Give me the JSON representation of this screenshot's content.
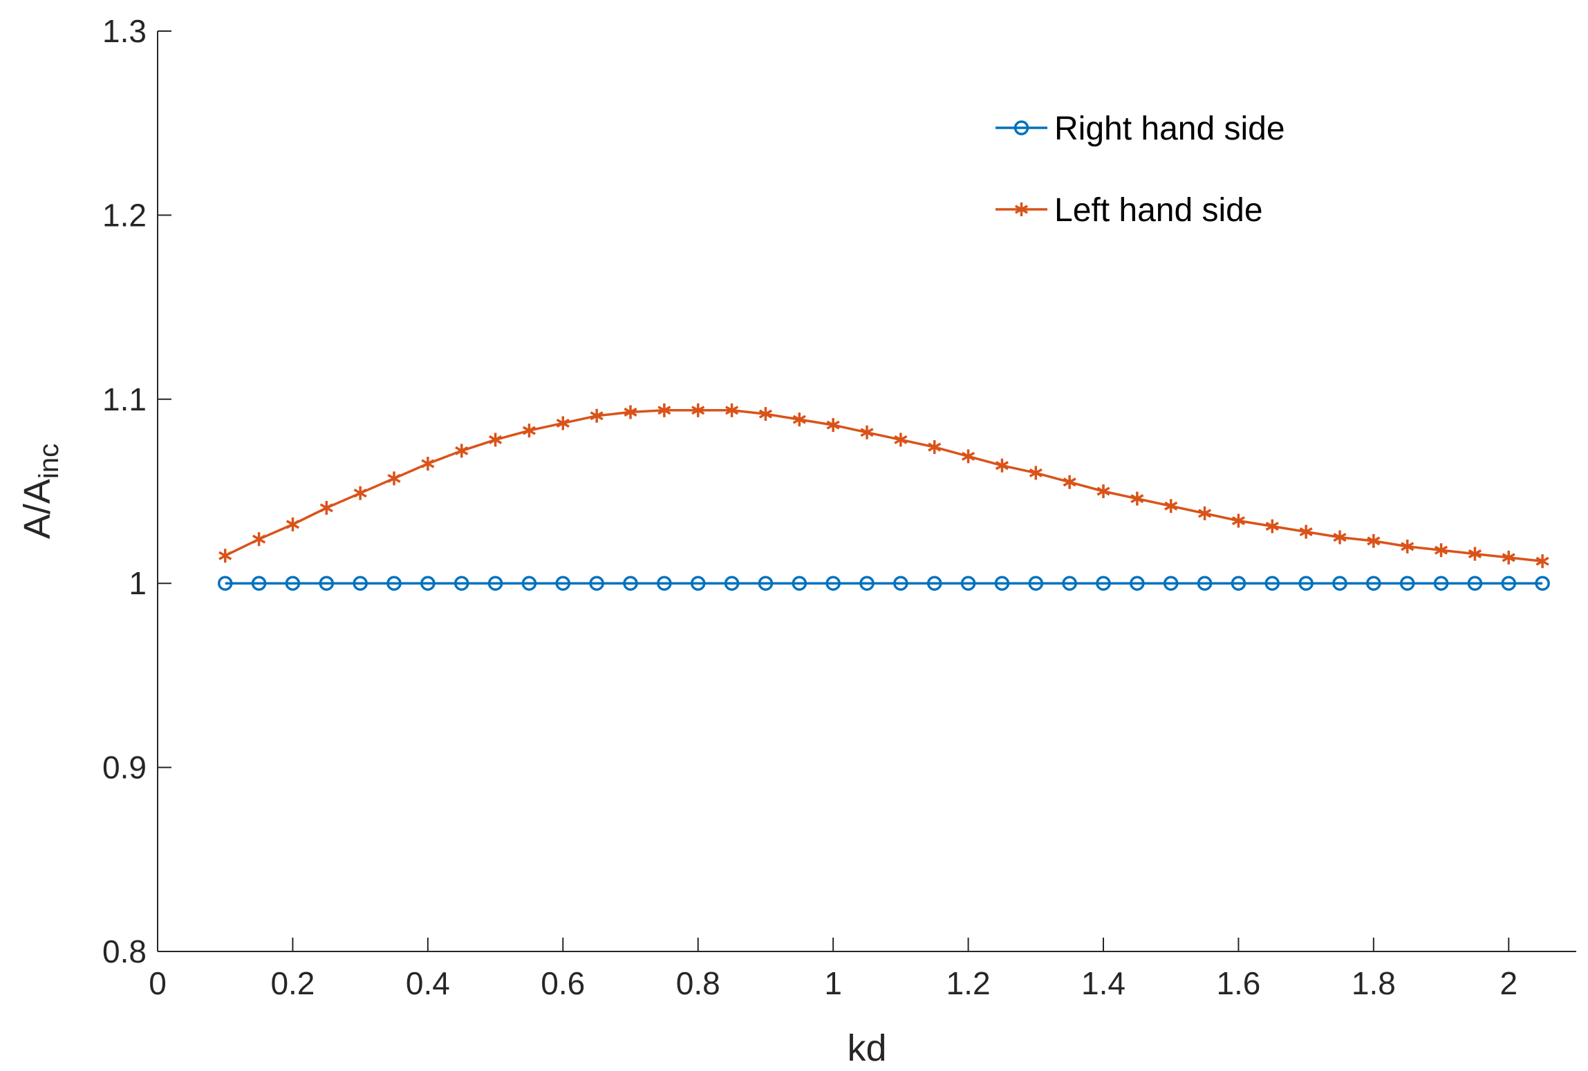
{
  "chart_data": {
    "type": "line",
    "xlabel": "kd",
    "ylabel": "A/A",
    "ylabel_sub": "inc",
    "xlim": [
      0,
      2.1
    ],
    "ylim": [
      0.8,
      1.3
    ],
    "xticks": [
      0,
      0.2,
      0.4,
      0.6,
      0.8,
      1,
      1.2,
      1.4,
      1.6,
      1.8,
      2
    ],
    "xtick_labels": [
      "0",
      "0.2",
      "0.4",
      "0.6",
      "0.8",
      "1",
      "1.2",
      "1.4",
      "1.6",
      "1.8",
      "2"
    ],
    "yticks": [
      0.8,
      0.9,
      1,
      1.1,
      1.2,
      1.3
    ],
    "ytick_labels": [
      "0.8",
      "0.9",
      "1",
      "1.1",
      "1.2",
      "1.3"
    ],
    "grid": false,
    "legend_position": "top-right",
    "x": [
      0.1,
      0.15,
      0.2,
      0.25,
      0.3,
      0.35,
      0.4,
      0.45,
      0.5,
      0.55,
      0.6,
      0.65,
      0.7,
      0.75,
      0.8,
      0.85,
      0.9,
      0.95,
      1.0,
      1.05,
      1.1,
      1.15,
      1.2,
      1.25,
      1.3,
      1.35,
      1.4,
      1.45,
      1.5,
      1.55,
      1.6,
      1.65,
      1.7,
      1.75,
      1.8,
      1.85,
      1.9,
      1.95,
      2.0,
      2.05
    ],
    "series": [
      {
        "name": "Right hand side",
        "color": "#0072BD",
        "marker": "circle",
        "values": [
          1,
          1,
          1,
          1,
          1,
          1,
          1,
          1,
          1,
          1,
          1,
          1,
          1,
          1,
          1,
          1,
          1,
          1,
          1,
          1,
          1,
          1,
          1,
          1,
          1,
          1,
          1,
          1,
          1,
          1,
          1,
          1,
          1,
          1,
          1,
          1,
          1,
          1,
          1,
          1
        ]
      },
      {
        "name": "Left hand side",
        "color": "#D95319",
        "marker": "asterisk",
        "values": [
          1.015,
          1.024,
          1.032,
          1.041,
          1.049,
          1.057,
          1.065,
          1.072,
          1.078,
          1.083,
          1.087,
          1.091,
          1.093,
          1.094,
          1.094,
          1.094,
          1.092,
          1.089,
          1.086,
          1.082,
          1.078,
          1.074,
          1.069,
          1.064,
          1.06,
          1.055,
          1.05,
          1.046,
          1.042,
          1.038,
          1.034,
          1.031,
          1.028,
          1.025,
          1.023,
          1.02,
          1.018,
          1.016,
          1.014,
          1.012
        ]
      }
    ]
  }
}
